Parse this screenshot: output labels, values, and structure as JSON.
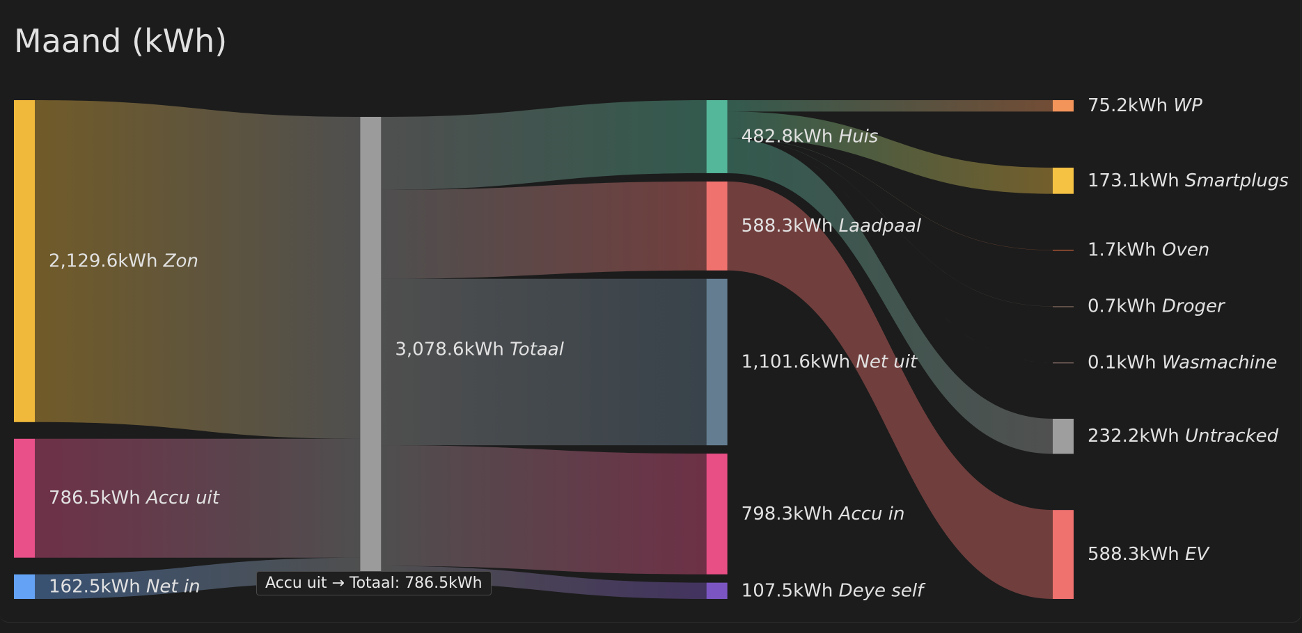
{
  "chart_data": {
    "type": "sankey",
    "title": "Maand (kWh)",
    "nodes": [
      {
        "name": "Zon",
        "value": 2129.6,
        "value_label": "2,129.6kWh",
        "color": "#f0b93c"
      },
      {
        "name": "Accu uit",
        "value": 786.5,
        "value_label": "786.5kWh",
        "color": "#e9508a"
      },
      {
        "name": "Net in",
        "value": 162.5,
        "value_label": "162.5kWh",
        "color": "#64a2f5"
      },
      {
        "name": "Totaal",
        "value": 3078.6,
        "value_label": "3,078.6kWh",
        "color": "#9b9b9b"
      },
      {
        "name": "Huis",
        "value": 482.8,
        "value_label": "482.8kWh",
        "color": "#55b79a"
      },
      {
        "name": "Laadpaal",
        "value": 588.3,
        "value_label": "588.3kWh",
        "color": "#ef726f"
      },
      {
        "name": "Net uit",
        "value": 1101.6,
        "value_label": "1,101.6kWh",
        "color": "#647d91"
      },
      {
        "name": "Accu in",
        "value": 798.3,
        "value_label": "798.3kWh",
        "color": "#e84f85"
      },
      {
        "name": "Deye self",
        "value": 107.5,
        "value_label": "107.5kWh",
        "color": "#7b56c2"
      },
      {
        "name": "WP",
        "value": 75.2,
        "value_label": "75.2kWh",
        "color": "#f3955b"
      },
      {
        "name": "Smartplugs",
        "value": 173.1,
        "value_label": "173.1kWh",
        "color": "#f6c244"
      },
      {
        "name": "Oven",
        "value": 1.7,
        "value_label": "1.7kWh",
        "color": "#f07040"
      },
      {
        "name": "Droger",
        "value": 0.7,
        "value_label": "0.7kWh",
        "color": "#9a7a6d"
      },
      {
        "name": "Wasmachine",
        "value": 0.1,
        "value_label": "0.1kWh",
        "color": "#a0847b"
      },
      {
        "name": "Untracked",
        "value": 232.2,
        "value_label": "232.2kWh",
        "color": "#9e9e9e"
      },
      {
        "name": "EV",
        "value": 588.3,
        "value_label": "588.3kWh",
        "color": "#ef726f"
      }
    ],
    "links": [
      {
        "source": 0,
        "target": 3,
        "value": 2129.6
      },
      {
        "source": 1,
        "target": 3,
        "value": 786.5
      },
      {
        "source": 2,
        "target": 3,
        "value": 162.5
      },
      {
        "source": 3,
        "target": 4,
        "value": 482.8
      },
      {
        "source": 3,
        "target": 5,
        "value": 588.3
      },
      {
        "source": 3,
        "target": 6,
        "value": 1101.6
      },
      {
        "source": 3,
        "target": 7,
        "value": 798.3
      },
      {
        "source": 3,
        "target": 8,
        "value": 107.5
      },
      {
        "source": 4,
        "target": 9,
        "value": 75.2
      },
      {
        "source": 4,
        "target": 10,
        "value": 173.1
      },
      {
        "source": 4,
        "target": 11,
        "value": 1.7
      },
      {
        "source": 4,
        "target": 12,
        "value": 0.7
      },
      {
        "source": 4,
        "target": 13,
        "value": 0.1
      },
      {
        "source": 4,
        "target": 14,
        "value": 232.2
      },
      {
        "source": 5,
        "target": 15,
        "value": 588.3
      }
    ],
    "tooltip": "Accu uit → Totaal: 786.5kWh"
  }
}
